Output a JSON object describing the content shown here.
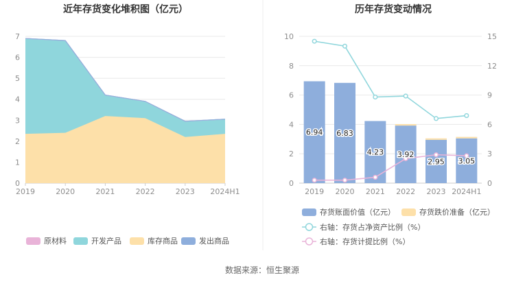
{
  "footer": {
    "source": "数据来源：恒生聚源"
  },
  "colors": {
    "raw": "#e9b3d8",
    "dev": "#8fd6dc",
    "stock": "#fde0a9",
    "ship": "#8eaedc",
    "bar": "#8eaedc",
    "impair": "#fde0a9",
    "line_right": "#8fd6dc",
    "line_pink": "#e9b3d8"
  },
  "chart_data": [
    {
      "type": "area",
      "title": "近年存货变化堆积图（亿元）",
      "categories": [
        "2019",
        "2020",
        "2021",
        "2022",
        "2023",
        "2024H1"
      ],
      "ylim": [
        0,
        7
      ],
      "yticks": [
        "0",
        "1",
        "2",
        "3",
        "4",
        "5",
        "6",
        "7"
      ],
      "series": [
        {
          "name": "原材料",
          "values": [
            0.0,
            0.0,
            0.0,
            0.0,
            0.0,
            0.0
          ]
        },
        {
          "name": "开发产品",
          "values": [
            4.55,
            4.4,
            1.0,
            0.8,
            0.75,
            0.7
          ]
        },
        {
          "name": "库存商品",
          "values": [
            2.35,
            2.4,
            3.2,
            3.1,
            2.2,
            2.35
          ]
        },
        {
          "name": "发出商品",
          "values": [
            0.0,
            0.0,
            0.0,
            0.0,
            0.0,
            0.0
          ]
        }
      ],
      "legend": [
        "原材料",
        "开发产品",
        "库存商品",
        "发出商品"
      ]
    },
    {
      "type": "bar",
      "title": "历年存货变动情况",
      "categories": [
        "2019",
        "2020",
        "2021",
        "2022",
        "2023",
        "2024H1"
      ],
      "ylim": [
        0,
        10
      ],
      "yticks": [
        "0",
        "2",
        "4",
        "6",
        "8",
        "10"
      ],
      "y2lim": [
        0,
        15
      ],
      "y2ticks": [
        "0",
        "3",
        "6",
        "9",
        "12",
        "15"
      ],
      "series": [
        {
          "name": "存货账面价值（亿元）",
          "axis": "left",
          "values": [
            6.94,
            6.83,
            4.23,
            3.92,
            2.95,
            3.05
          ],
          "labels": [
            "6.94",
            "6.83",
            "4.23",
            "3.92",
            "2.95",
            "3.05"
          ]
        },
        {
          "name": "存货跌价准备（亿元）",
          "axis": "left",
          "values": [
            0.0,
            0.0,
            0.0,
            0.1,
            0.1,
            0.1
          ]
        },
        {
          "name": "右轴：存货占净资产比例（%）",
          "axis": "right",
          "values": [
            14.5,
            14.0,
            8.8,
            8.9,
            6.6,
            6.9
          ]
        },
        {
          "name": "右轴：存货计提比例（%）",
          "axis": "right",
          "values": [
            0.3,
            0.3,
            0.6,
            2.5,
            2.9,
            2.8
          ]
        }
      ]
    }
  ]
}
